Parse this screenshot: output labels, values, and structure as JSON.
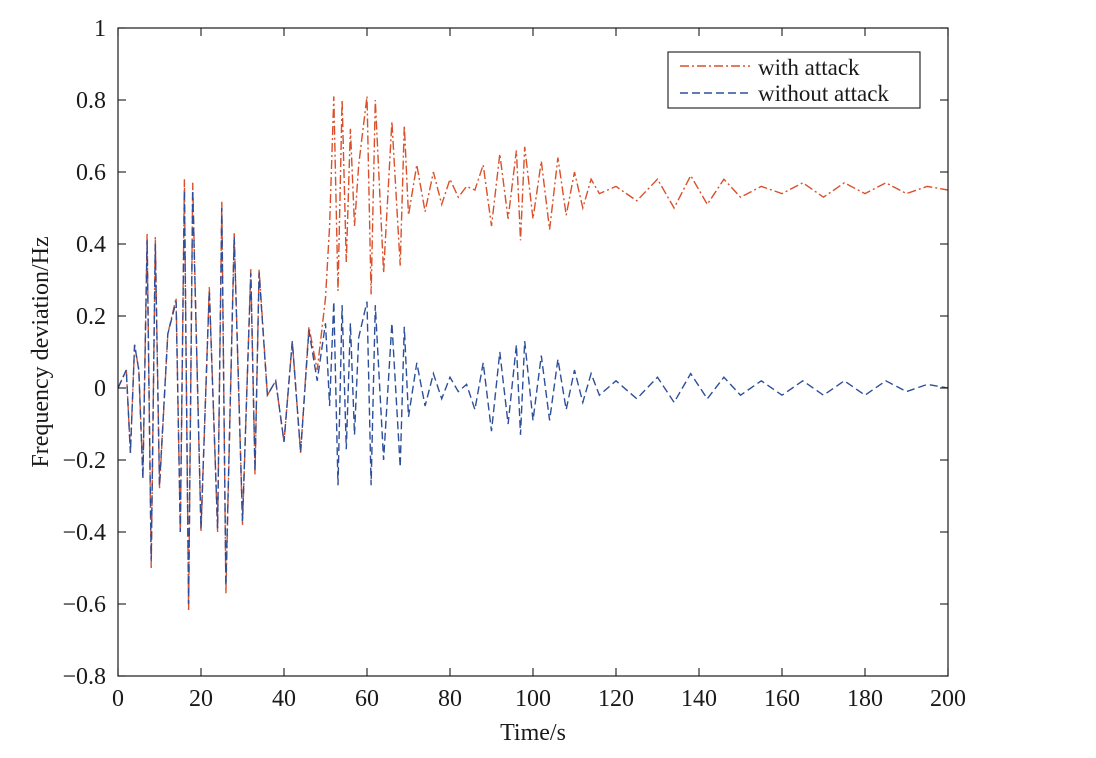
{
  "chart_data": {
    "type": "line",
    "xlabel": "Time/s",
    "ylabel": "Frequency deviation/Hz",
    "xlim": [
      0,
      200
    ],
    "ylim": [
      -0.8,
      1
    ],
    "xticks": [
      0,
      20,
      40,
      60,
      80,
      100,
      120,
      140,
      160,
      180,
      200
    ],
    "yticks": [
      -0.8,
      -0.6,
      -0.4,
      -0.2,
      0,
      0.2,
      0.4,
      0.6,
      0.8,
      1
    ],
    "xtick_labels": [
      "0",
      "20",
      "40",
      "60",
      "80",
      "100",
      "120",
      "140",
      "160",
      "180",
      "200"
    ],
    "ytick_labels": [
      "−0.8",
      "−0.6",
      "−0.4",
      "−0.2",
      "0",
      "0.2",
      "0.4",
      "0.6",
      "0.8",
      "1"
    ],
    "grid": false,
    "legend_position": "top-right",
    "series": [
      {
        "name": "with attack",
        "color": "#d9502a",
        "line_style": "dash-dot",
        "x": [
          0,
          2,
          3,
          4,
          5,
          6,
          7,
          8,
          9,
          10,
          12,
          14,
          15,
          16,
          17,
          18,
          20,
          22,
          24,
          25,
          26,
          28,
          30,
          32,
          33,
          34,
          36,
          38,
          40,
          42,
          44,
          46,
          48,
          50,
          51,
          52,
          53,
          54,
          55,
          56,
          57,
          58,
          60,
          61,
          62,
          64,
          66,
          68,
          69,
          70,
          72,
          74,
          76,
          78,
          80,
          82,
          84,
          86,
          88,
          90,
          92,
          94,
          96,
          97,
          98,
          100,
          102,
          104,
          106,
          108,
          110,
          112,
          114,
          116,
          120,
          125,
          130,
          134,
          138,
          142,
          146,
          150,
          155,
          160,
          165,
          170,
          175,
          180,
          185,
          190,
          195,
          200
        ],
        "y": [
          0,
          0.05,
          -0.18,
          0.12,
          0.05,
          -0.25,
          0.43,
          -0.5,
          0.42,
          -0.28,
          0.15,
          0.25,
          -0.4,
          0.58,
          -0.62,
          0.57,
          -0.4,
          0.28,
          -0.4,
          0.52,
          -0.57,
          0.43,
          -0.38,
          0.33,
          -0.24,
          0.33,
          -0.02,
          0.02,
          -0.15,
          0.13,
          -0.18,
          0.17,
          0.05,
          0.25,
          0.45,
          0.81,
          0.27,
          0.8,
          0.35,
          0.72,
          0.45,
          0.62,
          0.81,
          0.26,
          0.8,
          0.32,
          0.74,
          0.34,
          0.73,
          0.48,
          0.62,
          0.49,
          0.6,
          0.51,
          0.58,
          0.53,
          0.56,
          0.55,
          0.62,
          0.45,
          0.65,
          0.47,
          0.66,
          0.41,
          0.67,
          0.47,
          0.63,
          0.44,
          0.64,
          0.48,
          0.6,
          0.5,
          0.58,
          0.54,
          0.56,
          0.52,
          0.58,
          0.5,
          0.59,
          0.51,
          0.58,
          0.53,
          0.56,
          0.54,
          0.57,
          0.53,
          0.57,
          0.54,
          0.57,
          0.54,
          0.56,
          0.55
        ]
      },
      {
        "name": "without attack",
        "color": "#2d4f9a",
        "line_style": "dashed",
        "x": [
          0,
          2,
          3,
          4,
          5,
          6,
          7,
          8,
          9,
          10,
          12,
          14,
          15,
          16,
          17,
          18,
          20,
          22,
          24,
          25,
          26,
          28,
          30,
          32,
          33,
          34,
          36,
          38,
          40,
          42,
          44,
          46,
          48,
          50,
          51,
          52,
          53,
          54,
          55,
          56,
          57,
          58,
          60,
          61,
          62,
          64,
          66,
          68,
          69,
          70,
          72,
          74,
          76,
          78,
          80,
          82,
          84,
          86,
          88,
          90,
          92,
          94,
          96,
          97,
          98,
          100,
          102,
          104,
          106,
          108,
          110,
          112,
          114,
          116,
          120,
          125,
          130,
          134,
          138,
          142,
          146,
          150,
          155,
          160,
          165,
          170,
          175,
          180,
          185,
          190,
          195,
          200
        ],
        "y": [
          0,
          0.05,
          -0.18,
          0.12,
          0.05,
          -0.25,
          0.41,
          -0.48,
          0.4,
          -0.27,
          0.15,
          0.24,
          -0.4,
          0.55,
          -0.6,
          0.55,
          -0.39,
          0.27,
          -0.39,
          0.5,
          -0.55,
          0.42,
          -0.37,
          0.32,
          -0.23,
          0.32,
          -0.02,
          0.02,
          -0.15,
          0.13,
          -0.18,
          0.16,
          0.02,
          0.18,
          -0.05,
          0.24,
          -0.27,
          0.23,
          -0.17,
          0.18,
          -0.13,
          0.14,
          0.24,
          -0.27,
          0.23,
          -0.2,
          0.18,
          -0.22,
          0.17,
          -0.08,
          0.07,
          -0.05,
          0.04,
          -0.03,
          0.03,
          -0.01,
          0.01,
          -0.06,
          0.07,
          -0.12,
          0.1,
          -0.1,
          0.12,
          -0.13,
          0.13,
          -0.09,
          0.09,
          -0.09,
          0.08,
          -0.06,
          0.05,
          -0.04,
          0.04,
          -0.02,
          0.02,
          -0.03,
          0.03,
          -0.04,
          0.04,
          -0.03,
          0.03,
          -0.02,
          0.02,
          -0.02,
          0.02,
          -0.02,
          0.02,
          -0.02,
          0.02,
          -0.01,
          0.01,
          0
        ]
      }
    ]
  }
}
